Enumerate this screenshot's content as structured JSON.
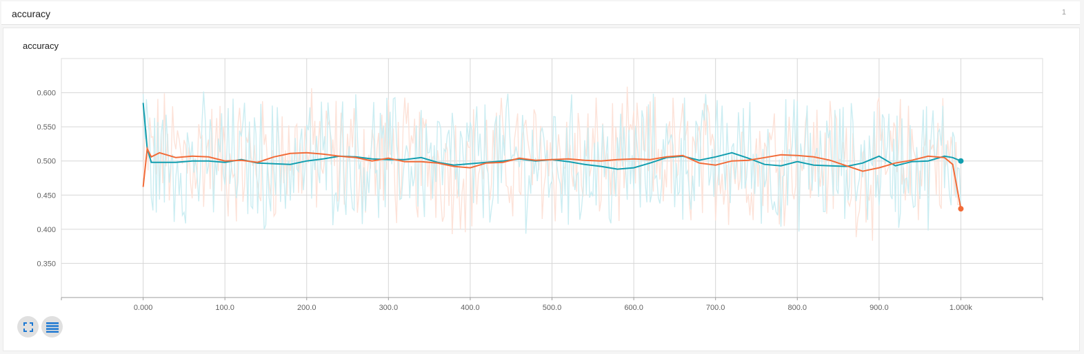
{
  "header": {
    "title": "accuracy",
    "count": "1"
  },
  "card": {
    "title": "accuracy"
  },
  "buttons": {
    "expand": "expand-icon",
    "menu": "menu-lines-icon"
  },
  "colors": {
    "teal": "#129eaf",
    "orange": "#f26b38",
    "teal_raw": "#c8ecf1",
    "orange_raw": "#fde0d6"
  },
  "chart_data": {
    "type": "line",
    "title": "accuracy",
    "xlim": [
      -100,
      1100
    ],
    "ylim": [
      0.3,
      0.65
    ],
    "x_ticks": [
      0,
      100,
      200,
      300,
      400,
      500,
      600,
      700,
      800,
      900,
      1000
    ],
    "x_tick_labels": [
      "0.000",
      "100.0",
      "200.0",
      "300.0",
      "400.0",
      "500.0",
      "600.0",
      "700.0",
      "800.0",
      "900.0",
      "1.000k"
    ],
    "y_ticks": [
      0.35,
      0.4,
      0.45,
      0.5,
      0.55,
      0.6
    ],
    "y_tick_labels": [
      "0.350",
      "0.400",
      "0.450",
      "0.500",
      "0.550",
      "0.600"
    ],
    "grid": true,
    "series": [
      {
        "color": "#129eaf",
        "x": [
          0,
          5,
          10,
          20,
          40,
          60,
          80,
          100,
          120,
          140,
          160,
          180,
          200,
          220,
          240,
          260,
          280,
          300,
          320,
          340,
          360,
          380,
          400,
          420,
          440,
          460,
          480,
          500,
          520,
          540,
          560,
          580,
          600,
          620,
          640,
          660,
          680,
          700,
          720,
          740,
          760,
          780,
          800,
          820,
          840,
          860,
          880,
          900,
          920,
          940,
          960,
          980,
          990,
          1000
        ],
        "y": [
          0.585,
          0.518,
          0.498,
          0.498,
          0.498,
          0.5,
          0.5,
          0.498,
          0.502,
          0.497,
          0.496,
          0.495,
          0.5,
          0.503,
          0.507,
          0.506,
          0.503,
          0.502,
          0.502,
          0.505,
          0.498,
          0.494,
          0.496,
          0.498,
          0.5,
          0.503,
          0.5,
          0.502,
          0.499,
          0.495,
          0.492,
          0.488,
          0.49,
          0.497,
          0.505,
          0.507,
          0.501,
          0.506,
          0.512,
          0.504,
          0.495,
          0.493,
          0.499,
          0.494,
          0.493,
          0.492,
          0.497,
          0.507,
          0.493,
          0.499,
          0.5,
          0.507,
          0.505,
          0.5
        ]
      },
      {
        "color": "#f26b38",
        "x": [
          0,
          5,
          10,
          20,
          40,
          60,
          80,
          100,
          120,
          140,
          160,
          180,
          200,
          220,
          240,
          260,
          280,
          300,
          320,
          340,
          360,
          380,
          400,
          420,
          440,
          460,
          480,
          500,
          520,
          540,
          560,
          580,
          600,
          620,
          640,
          660,
          680,
          700,
          720,
          740,
          760,
          780,
          800,
          820,
          840,
          860,
          880,
          900,
          920,
          940,
          960,
          980,
          990,
          1000
        ],
        "y": [
          0.462,
          0.518,
          0.506,
          0.512,
          0.505,
          0.507,
          0.506,
          0.5,
          0.501,
          0.498,
          0.506,
          0.511,
          0.512,
          0.51,
          0.507,
          0.505,
          0.5,
          0.504,
          0.499,
          0.499,
          0.497,
          0.492,
          0.49,
          0.497,
          0.498,
          0.504,
          0.501,
          0.502,
          0.503,
          0.501,
          0.5,
          0.502,
          0.503,
          0.502,
          0.506,
          0.508,
          0.497,
          0.494,
          0.5,
          0.501,
          0.505,
          0.509,
          0.508,
          0.506,
          0.501,
          0.493,
          0.485,
          0.49,
          0.497,
          0.501,
          0.507,
          0.505,
          0.495,
          0.43
        ]
      }
    ]
  }
}
